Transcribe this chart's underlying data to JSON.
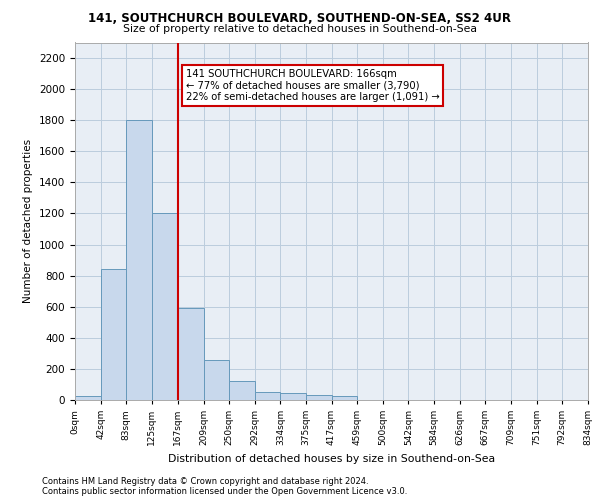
{
  "title_line1": "141, SOUTHCHURCH BOULEVARD, SOUTHEND-ON-SEA, SS2 4UR",
  "title_line2": "Size of property relative to detached houses in Southend-on-Sea",
  "xlabel": "Distribution of detached houses by size in Southend-on-Sea",
  "ylabel": "Number of detached properties",
  "bin_edges": [
    0,
    42,
    83,
    125,
    167,
    209,
    250,
    292,
    334,
    375,
    417,
    459,
    500,
    542,
    584,
    626,
    667,
    709,
    751,
    792,
    834
  ],
  "bin_labels": [
    "0sqm",
    "42sqm",
    "83sqm",
    "125sqm",
    "167sqm",
    "209sqm",
    "250sqm",
    "292sqm",
    "334sqm",
    "375sqm",
    "417sqm",
    "459sqm",
    "500sqm",
    "542sqm",
    "584sqm",
    "626sqm",
    "667sqm",
    "709sqm",
    "751sqm",
    "792sqm",
    "834sqm"
  ],
  "bar_heights": [
    25,
    845,
    1800,
    1200,
    590,
    260,
    125,
    50,
    45,
    35,
    25,
    0,
    0,
    0,
    0,
    0,
    0,
    0,
    0,
    0
  ],
  "bar_color": "#c8d8ec",
  "bar_edge_color": "#6699bb",
  "vline_x": 167,
  "annotation_text": "141 SOUTHCHURCH BOULEVARD: 166sqm\n← 77% of detached houses are smaller (3,790)\n22% of semi-detached houses are larger (1,091) →",
  "annotation_box_color": "#ffffff",
  "annotation_box_edge_color": "#cc0000",
  "ylim": [
    0,
    2300
  ],
  "yticks": [
    0,
    200,
    400,
    600,
    800,
    1000,
    1200,
    1400,
    1600,
    1800,
    2000,
    2200
  ],
  "vline_color": "#cc0000",
  "grid_color": "#bbccdd",
  "background_color": "#e8eef5",
  "footer_line1": "Contains HM Land Registry data © Crown copyright and database right 2024.",
  "footer_line2": "Contains public sector information licensed under the Open Government Licence v3.0."
}
